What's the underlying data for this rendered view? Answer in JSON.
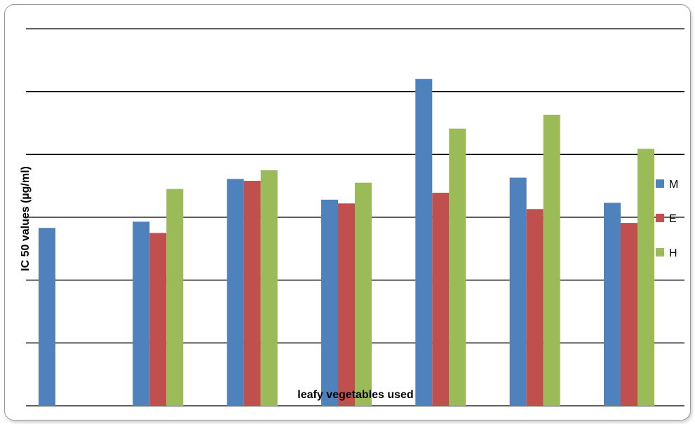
{
  "chart_data": {
    "type": "bar",
    "title": "",
    "xlabel": "leafy vegetables used",
    "ylabel": "IC 50 values (µg/ml)",
    "ylim": [
      0,
      6
    ],
    "grid": true,
    "legend_position": "right",
    "categories": [
      "",
      "",
      "",
      "",
      "",
      "",
      ""
    ],
    "series": [
      {
        "name": "M",
        "color": "#4F81BD",
        "values": [
          2.83,
          2.93,
          3.61,
          3.28,
          5.2,
          3.63,
          3.23
        ]
      },
      {
        "name": "E",
        "color": "#C0504D",
        "values": [
          null,
          2.75,
          3.58,
          3.22,
          3.39,
          3.13,
          2.91
        ]
      },
      {
        "name": "H",
        "color": "#9BBB59",
        "values": [
          null,
          3.45,
          3.75,
          3.55,
          4.41,
          4.63,
          4.09
        ]
      }
    ]
  }
}
